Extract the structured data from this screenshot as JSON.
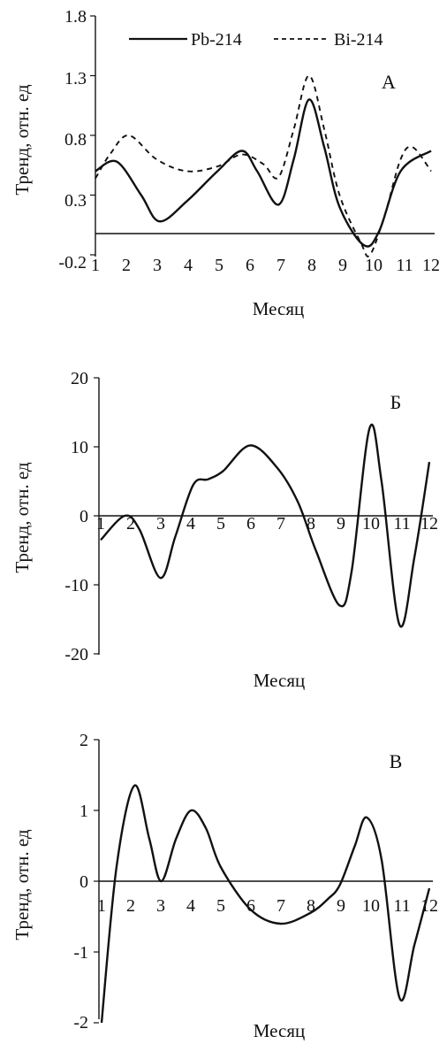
{
  "chart_data": [
    {
      "type": "line",
      "panel_label": "А",
      "ylabel": "Тренд, отн. ед",
      "xlabel": "Месяц",
      "ylim": [
        -0.2,
        1.8
      ],
      "yticks": [
        "1.8",
        "1.3",
        "0.8",
        "0.3",
        "-0.2"
      ],
      "xticks": [
        "1",
        "2",
        "3",
        "4",
        "5",
        "6",
        "7",
        "8",
        "9",
        "10",
        "11",
        "12"
      ],
      "legend": {
        "position": "top",
        "entries": [
          "Pb-214",
          "Bi-214"
        ]
      },
      "series": [
        {
          "name": "Pb-214",
          "style": "solid",
          "x": [
            1,
            1.7,
            2.5,
            3.1,
            4,
            5,
            5.8,
            6.3,
            7,
            7.5,
            8,
            8.5,
            9,
            9.8,
            10.3,
            11,
            12
          ],
          "values": [
            0.5,
            0.58,
            0.3,
            0.08,
            0.25,
            0.5,
            0.67,
            0.5,
            0.22,
            0.6,
            1.1,
            0.7,
            0.2,
            -0.12,
            0.0,
            0.5,
            0.67
          ]
        },
        {
          "name": "Bi-214",
          "style": "dashed",
          "x": [
            1,
            1.5,
            2.1,
            3,
            4,
            5,
            5.8,
            6.5,
            7,
            7.5,
            8,
            8.5,
            9,
            9.7,
            10,
            10.5,
            11,
            11.4,
            12
          ],
          "values": [
            0.44,
            0.65,
            0.8,
            0.6,
            0.5,
            0.54,
            0.64,
            0.56,
            0.45,
            0.85,
            1.3,
            0.85,
            0.3,
            -0.1,
            -0.2,
            0.15,
            0.6,
            0.7,
            0.5
          ]
        }
      ]
    },
    {
      "type": "line",
      "panel_label": "Б",
      "ylabel": "Тренд, отн. ед",
      "xlabel": "Месяц",
      "ylim": [
        -20,
        20
      ],
      "yticks": [
        "20",
        "10",
        "0",
        "-10",
        "-20"
      ],
      "xticks": [
        "1",
        "2",
        "3",
        "4",
        "5",
        "6",
        "7",
        "8",
        "9",
        "10",
        "11",
        "12"
      ],
      "series": [
        {
          "name": "",
          "style": "solid",
          "x": [
            1,
            1.8,
            2.3,
            3,
            3.5,
            4.1,
            4.6,
            5.1,
            6,
            6.9,
            7.6,
            8.2,
            9,
            9.4,
            10,
            10.4,
            11,
            11.5,
            12
          ],
          "values": [
            -3.5,
            0,
            -2,
            -9,
            -3,
            4.5,
            5.3,
            6.5,
            10.2,
            7,
            2,
            -5,
            -13,
            -8,
            12.7,
            5,
            -15.8,
            -6,
            7.8
          ]
        }
      ]
    },
    {
      "type": "line",
      "panel_label": "В",
      "ylabel": "Тренд, отн. ед",
      "xlabel": "Месяц",
      "ylim": [
        -2,
        2
      ],
      "yticks": [
        "2",
        "1",
        "0",
        "-1",
        "-2"
      ],
      "xticks": [
        "1",
        "2",
        "3",
        "4",
        "5",
        "6",
        "7",
        "8",
        "9",
        "10",
        "11",
        "12"
      ],
      "series": [
        {
          "name": "",
          "style": "solid",
          "x": [
            1,
            1.5,
            2.1,
            2.6,
            3,
            3.5,
            4,
            4.5,
            5,
            6,
            7,
            8,
            8.6,
            9,
            9.5,
            9.9,
            10.4,
            11,
            11.5,
            12
          ],
          "values": [
            -2,
            0.2,
            1.35,
            0.6,
            0,
            0.6,
            1,
            0.75,
            0.2,
            -0.4,
            -0.6,
            -0.45,
            -0.25,
            -0.05,
            0.5,
            0.9,
            0.3,
            -1.65,
            -0.9,
            -0.1
          ]
        }
      ]
    }
  ]
}
